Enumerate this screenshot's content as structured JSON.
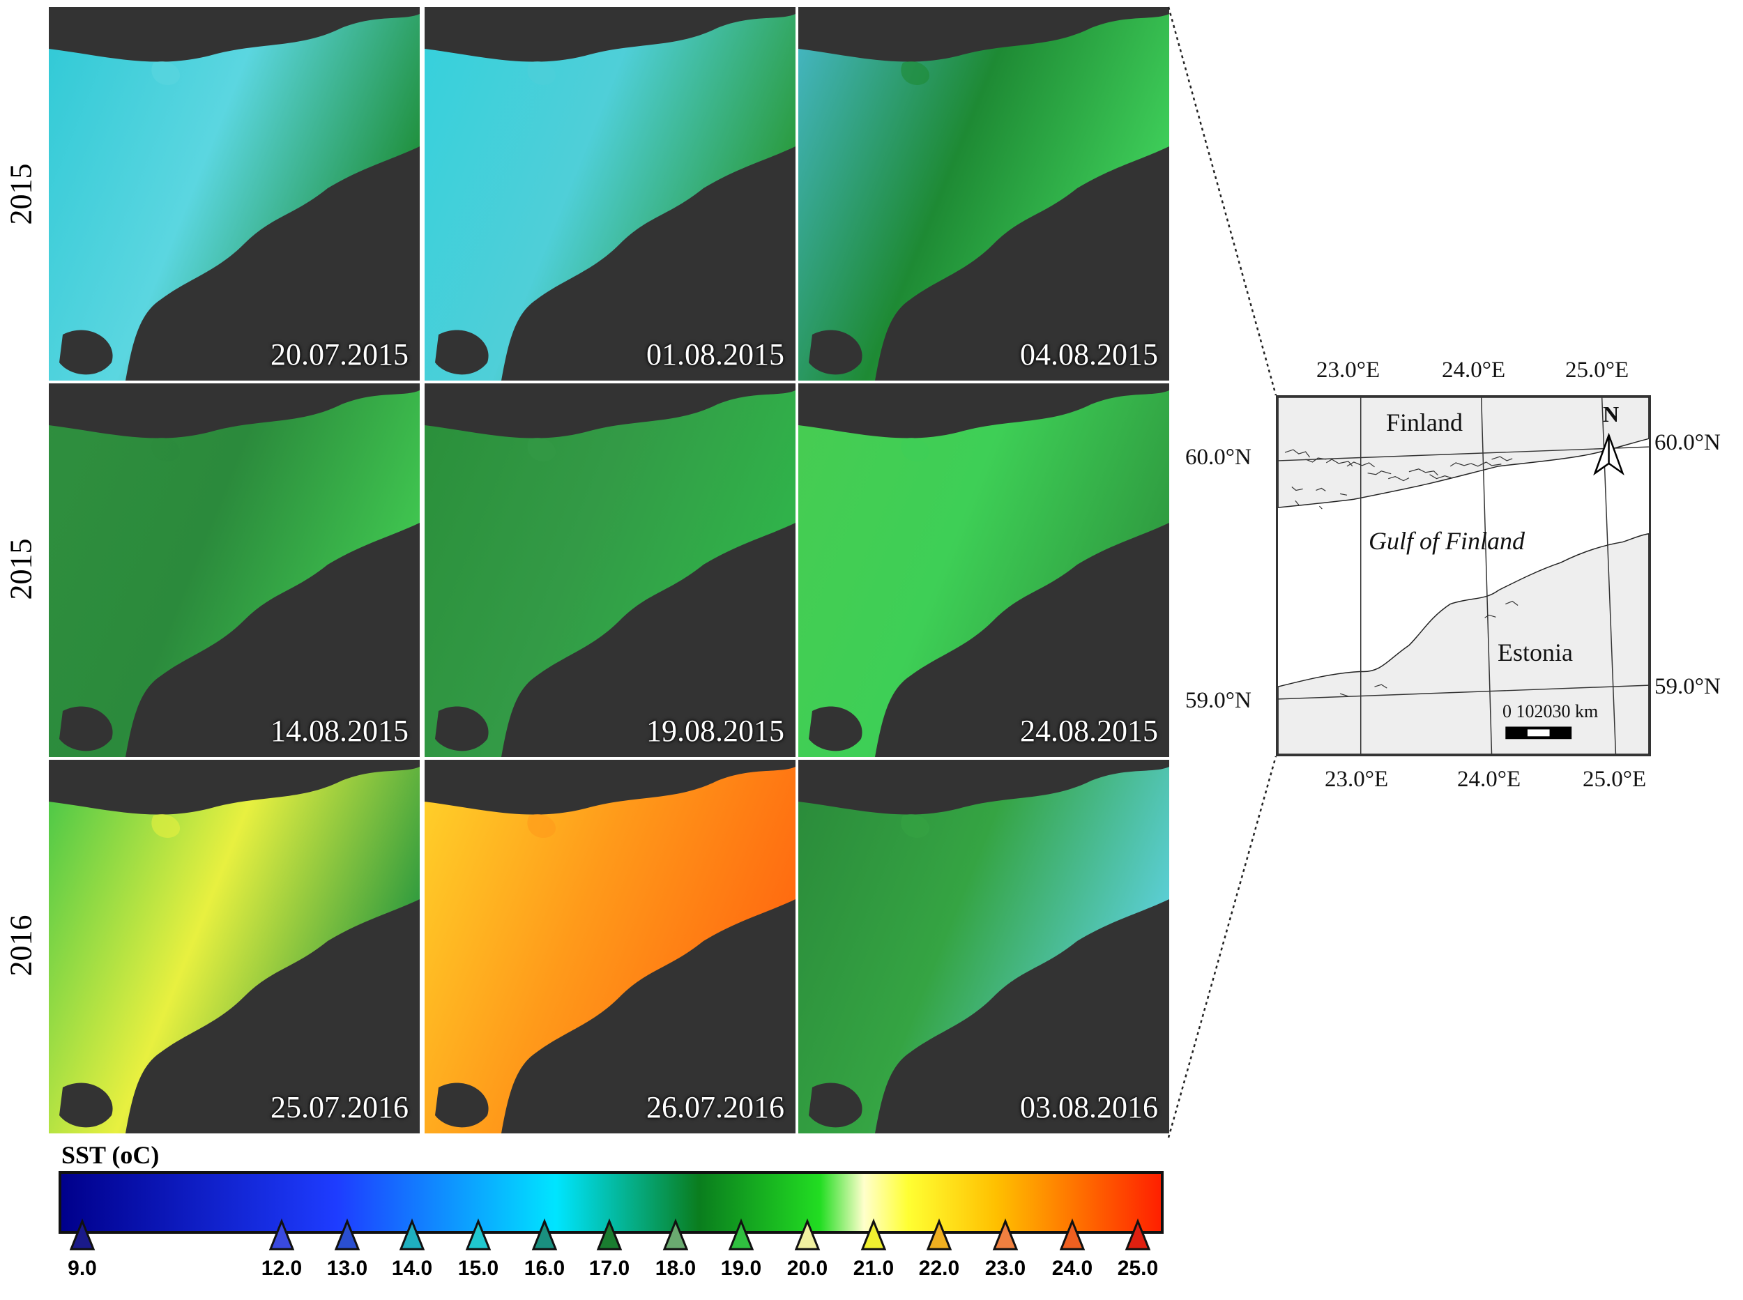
{
  "row_labels": [
    "2015",
    "2015",
    "2016"
  ],
  "panels": [
    {
      "date": "20.07.2015"
    },
    {
      "date": "01.08.2015"
    },
    {
      "date": "04.08.2015"
    },
    {
      "date": "14.08.2015"
    },
    {
      "date": "19.08.2015"
    },
    {
      "date": "24.08.2015"
    },
    {
      "date": "25.07.2016"
    },
    {
      "date": "26.07.2016"
    },
    {
      "date": "03.08.2016"
    }
  ],
  "colorbar": {
    "title": "SST (oC)",
    "ticks": [
      "9.0",
      "12.0",
      "13.0",
      "14.0",
      "15.0",
      "16.0",
      "17.0",
      "18.0",
      "19.0",
      "20.0",
      "21.0",
      "22.0",
      "23.0",
      "24.0",
      "25.0"
    ],
    "colors": {
      "c9": "#00008b",
      "c12": "#1e3cff",
      "c15": "#00e5ff",
      "c17": "#0a7d1e",
      "c19": "#22dd22",
      "c20": "#ffffcc",
      "c21": "#ffff33",
      "c22": "#ffc000",
      "c25": "#ff2000"
    }
  },
  "locator_map": {
    "labels": {
      "finland": "Finland",
      "gulf": "Gulf of Finland",
      "estonia": "Estonia",
      "north": "N",
      "scale": "0 102030 km"
    },
    "coords": {
      "top_lon": [
        "23.0°E",
        "24.0°E",
        "25.0°E"
      ],
      "bottom_lon": [
        "23.0°E",
        "24.0°E",
        "25.0°E"
      ],
      "left_lat": [
        "60.0°N",
        "59.0°N"
      ],
      "right_lat": [
        "60.0°N",
        "59.0°N"
      ]
    }
  },
  "colors": {
    "land": "#333333",
    "map_land": "#eeeeee"
  }
}
